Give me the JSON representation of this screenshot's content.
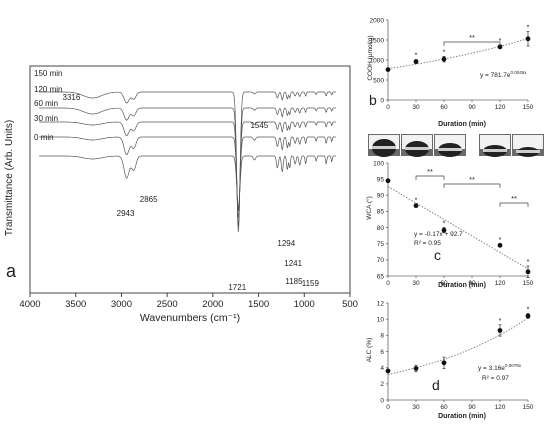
{
  "chart_data": [
    {
      "panel": "a",
      "type": "line",
      "xlabel": "Wavenumbers (cm⁻¹)",
      "ylabel": "Transmittance (Arb. Units)",
      "xlim": [
        4000,
        500
      ],
      "x_reversed": true,
      "xticks": [
        4000,
        3500,
        3000,
        2500,
        2000,
        1500,
        1000,
        500
      ],
      "series": [
        {
          "name": "150 min"
        },
        {
          "name": "120 min"
        },
        {
          "name": "60 min"
        },
        {
          "name": "30 min"
        },
        {
          "name": "0 min"
        }
      ],
      "annotations": [
        {
          "text": "3316",
          "x": 3316
        },
        {
          "text": "2943",
          "x": 2943
        },
        {
          "text": "2865",
          "x": 2865
        },
        {
          "text": "1545",
          "x": 1545
        },
        {
          "text": "1721",
          "x": 1721
        },
        {
          "text": "1294",
          "x": 1294
        },
        {
          "text": "1241",
          "x": 1241
        },
        {
          "text": "1185",
          "x": 1185
        },
        {
          "text": "1159",
          "x": 1159
        }
      ]
    },
    {
      "panel": "b",
      "type": "scatter",
      "xlabel": "Duration (min)",
      "ylabel": "COOH (μmol/g)",
      "xlim": [
        0,
        150
      ],
      "ylim": [
        0,
        2000
      ],
      "xticks": [
        0,
        30,
        60,
        90,
        120,
        150
      ],
      "yticks": [
        0,
        500,
        1000,
        1500,
        2000
      ],
      "x": [
        0,
        30,
        60,
        120,
        150
      ],
      "y": [
        760,
        960,
        1020,
        1330,
        1530
      ],
      "err": [
        20,
        50,
        70,
        50,
        180
      ],
      "markers": [
        "",
        "*",
        "*",
        "*",
        "*"
      ],
      "significance": [
        {
          "from": 60,
          "to": 120,
          "label": "**"
        }
      ],
      "fit_label": "y = 781.7e",
      "fit_exponent": "0.0045x"
    },
    {
      "panel": "c",
      "type": "scatter",
      "xlabel": "Duration (min)",
      "ylabel": "WCA (°)",
      "xlim": [
        0,
        150
      ],
      "ylim": [
        65,
        100
      ],
      "xticks": [
        0,
        30,
        60,
        90,
        120,
        150
      ],
      "yticks": [
        65,
        70,
        75,
        80,
        85,
        90,
        95,
        100
      ],
      "x": [
        0,
        30,
        60,
        120,
        150
      ],
      "y": [
        94.5,
        86.8,
        79.2,
        74.5,
        66.3
      ],
      "err": [
        0.4,
        0.4,
        0.8,
        0.4,
        1.8
      ],
      "markers": [
        "",
        "*",
        "*",
        "*",
        "*"
      ],
      "significance": [
        {
          "from": 30,
          "to": 60,
          "label": "**"
        },
        {
          "from": 60,
          "to": 120,
          "label": "**"
        },
        {
          "from": 120,
          "to": 150,
          "label": "**"
        }
      ],
      "fit_label": "y = -0.17x + 92.7",
      "r2_label": "R² = 0.95"
    },
    {
      "panel": "d",
      "type": "scatter",
      "xlabel": "Duration (min)",
      "ylabel": "ALC (%)",
      "xlim": [
        0,
        150
      ],
      "ylim": [
        0,
        12
      ],
      "xticks": [
        0,
        30,
        60,
        90,
        120,
        150
      ],
      "yticks": [
        0,
        2,
        4,
        6,
        8,
        10,
        12
      ],
      "x": [
        0,
        30,
        60,
        120,
        150
      ],
      "y": [
        3.6,
        3.9,
        4.6,
        8.6,
        10.4
      ],
      "err": [
        0.2,
        0.4,
        0.7,
        0.7,
        0.3
      ],
      "markers": [
        "",
        "",
        "",
        "*",
        "*"
      ],
      "fit_label": "y = 3.16e",
      "fit_exponent": "0.0078x",
      "r2_label": "R² = 0.97"
    }
  ]
}
